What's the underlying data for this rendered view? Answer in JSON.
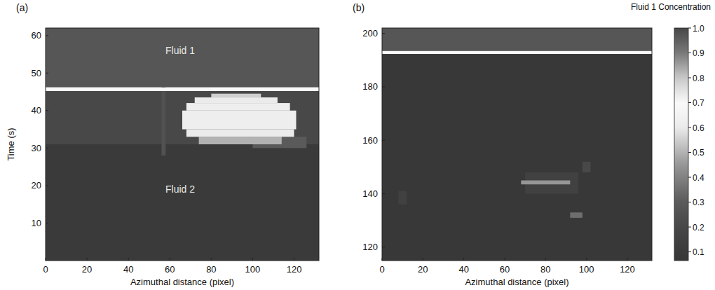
{
  "chart_data": [
    {
      "type": "heatmap",
      "panel_label": "(a)",
      "x_label": "Azimuthal distance (pixel)",
      "y_label": "Time (s)",
      "xlim": [
        0,
        132
      ],
      "xticks": [
        0,
        20,
        40,
        60,
        80,
        100,
        120
      ],
      "ylim": [
        0,
        62
      ],
      "yticks": [
        10,
        20,
        30,
        40,
        50,
        60
      ],
      "annotations": [
        {
          "text": "Fluid 1",
          "x": 65,
          "y": 56
        },
        {
          "text": "Fluid 2",
          "x": 65,
          "y": 19
        }
      ],
      "cells": [
        {
          "x": [
            0,
            132
          ],
          "y": [
            0,
            31
          ],
          "value": 0.1
        },
        {
          "x": [
            0,
            132
          ],
          "y": [
            31,
            45.2
          ],
          "value": 0.2
        },
        {
          "x": [
            56,
            58
          ],
          "y": [
            28,
            50
          ],
          "value": 0.25
        },
        {
          "x": [
            100,
            126
          ],
          "y": [
            30,
            33
          ],
          "value": 0.3
        },
        {
          "x": [
            74,
            114
          ],
          "y": [
            31,
            33
          ],
          "value": 0.5
        },
        {
          "x": [
            68,
            120
          ],
          "y": [
            33,
            35
          ],
          "value": 0.6
        },
        {
          "x": [
            66,
            121
          ],
          "y": [
            35,
            40
          ],
          "value": 0.62
        },
        {
          "x": [
            68,
            118
          ],
          "y": [
            40,
            42
          ],
          "value": 0.62
        },
        {
          "x": [
            72,
            112
          ],
          "y": [
            42,
            43.5
          ],
          "value": 0.6
        },
        {
          "x": [
            80,
            104
          ],
          "y": [
            43.5,
            44.5
          ],
          "value": 0.55
        },
        {
          "x": [
            0,
            132
          ],
          "y": [
            45.2,
            46.2
          ],
          "value": 0.7
        },
        {
          "x": [
            0,
            132
          ],
          "y": [
            46.2,
            62
          ],
          "value": 0.97
        }
      ]
    },
    {
      "type": "heatmap",
      "panel_label": "(b)",
      "x_label": "Azimuthal distance (pixel)",
      "xlim": [
        0,
        132
      ],
      "xticks": [
        0,
        20,
        40,
        60,
        80,
        100,
        120
      ],
      "ylim": [
        115,
        202
      ],
      "yticks": [
        120,
        140,
        160,
        180,
        200
      ],
      "cells": [
        {
          "x": [
            0,
            132
          ],
          "y": [
            115,
            192.3
          ],
          "value": 0.08
        },
        {
          "x": [
            8,
            12
          ],
          "y": [
            136,
            141
          ],
          "value": 0.15
        },
        {
          "x": [
            70,
            96
          ],
          "y": [
            140,
            148
          ],
          "value": 0.15
        },
        {
          "x": [
            68,
            92
          ],
          "y": [
            143.5,
            145
          ],
          "value": 0.45
        },
        {
          "x": [
            92,
            98
          ],
          "y": [
            131,
            133
          ],
          "value": 0.35
        },
        {
          "x": [
            98,
            102
          ],
          "y": [
            148,
            152
          ],
          "value": 0.2
        },
        {
          "x": [
            0,
            132
          ],
          "y": [
            192.3,
            193.4
          ],
          "value": 0.7
        },
        {
          "x": [
            0,
            132
          ],
          "y": [
            193.4,
            202
          ],
          "value": 0.97
        }
      ],
      "colorbar": {
        "label": "Fluid 1 Concentration",
        "range": [
          0.065,
          1
        ],
        "ticks": [
          0.1,
          0.2,
          0.3,
          0.4,
          0.5,
          0.6,
          0.7,
          0.8,
          0.9,
          {
            "value": 1,
            "label": "1.0"
          }
        ]
      }
    }
  ]
}
